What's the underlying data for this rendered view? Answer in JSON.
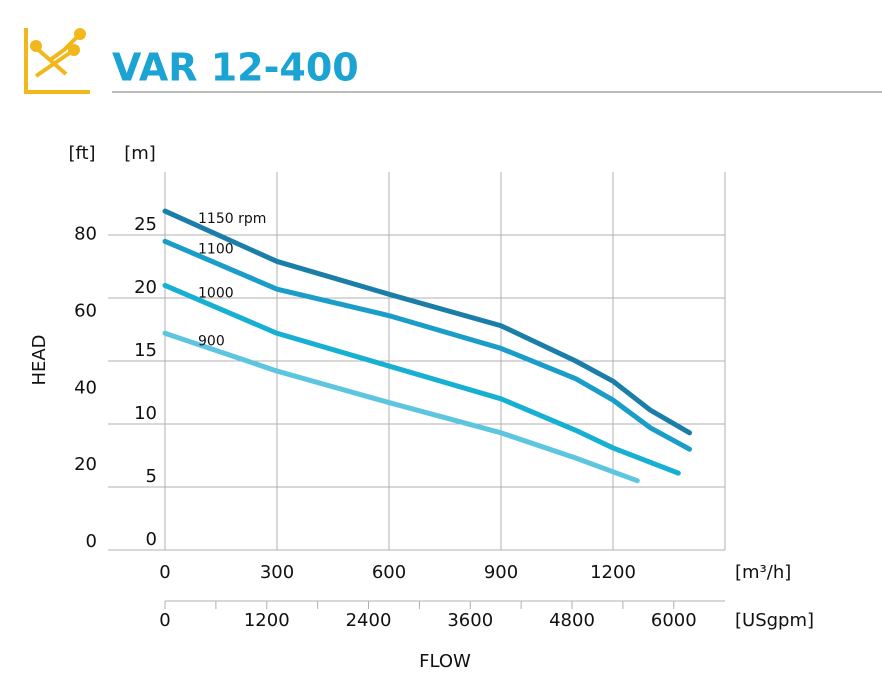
{
  "chart_data": {
    "type": "line",
    "title": "VAR 12-400",
    "ylabel": "HEAD",
    "xlabel": "FLOW",
    "yunit": "[m]",
    "y2unit": "[ft]",
    "xunit": "[m³/h]",
    "x2unit": "[USgpm]",
    "xlim": [
      0,
      1500
    ],
    "xticks": [
      0,
      300,
      600,
      900,
      1200
    ],
    "ylim": [
      0,
      30
    ],
    "yticks": [
      0,
      5,
      10,
      15,
      20,
      25
    ],
    "y2lim": [
      0,
      98.4
    ],
    "y2ticks": [
      0,
      20,
      40,
      60,
      80
    ],
    "x2lim": [
      0,
      6604
    ],
    "x2ticks": [
      0,
      1200,
      2400,
      3600,
      4800,
      6000
    ],
    "x2minor_ticks": [
      600,
      1800,
      3000,
      4200,
      5400
    ],
    "grid": true,
    "series": [
      {
        "name": "1150 rpm",
        "color": "#1a7ea8",
        "x": [
          0,
          300,
          600,
          900,
          1100,
          1200,
          1300,
          1405
        ],
        "values": [
          26.9,
          22.9,
          20.3,
          17.8,
          15.0,
          13.4,
          11.1,
          9.3
        ]
      },
      {
        "name": "1100",
        "color": "#1a9dc8",
        "x": [
          0,
          300,
          600,
          900,
          1100,
          1200,
          1300,
          1405
        ],
        "values": [
          24.5,
          20.7,
          18.6,
          16.0,
          13.6,
          11.9,
          9.7,
          8.0
        ]
      },
      {
        "name": "1000",
        "color": "#16b0d2",
        "x": [
          0,
          300,
          600,
          900,
          1100,
          1200,
          1375
        ],
        "values": [
          21.0,
          17.2,
          14.6,
          12.0,
          9.5,
          8.1,
          6.1
        ]
      },
      {
        "name": "900",
        "color": "#5dc5df",
        "x": [
          0,
          300,
          600,
          900,
          1100,
          1265
        ],
        "values": [
          17.2,
          14.2,
          11.7,
          9.3,
          7.3,
          5.5
        ]
      }
    ]
  }
}
